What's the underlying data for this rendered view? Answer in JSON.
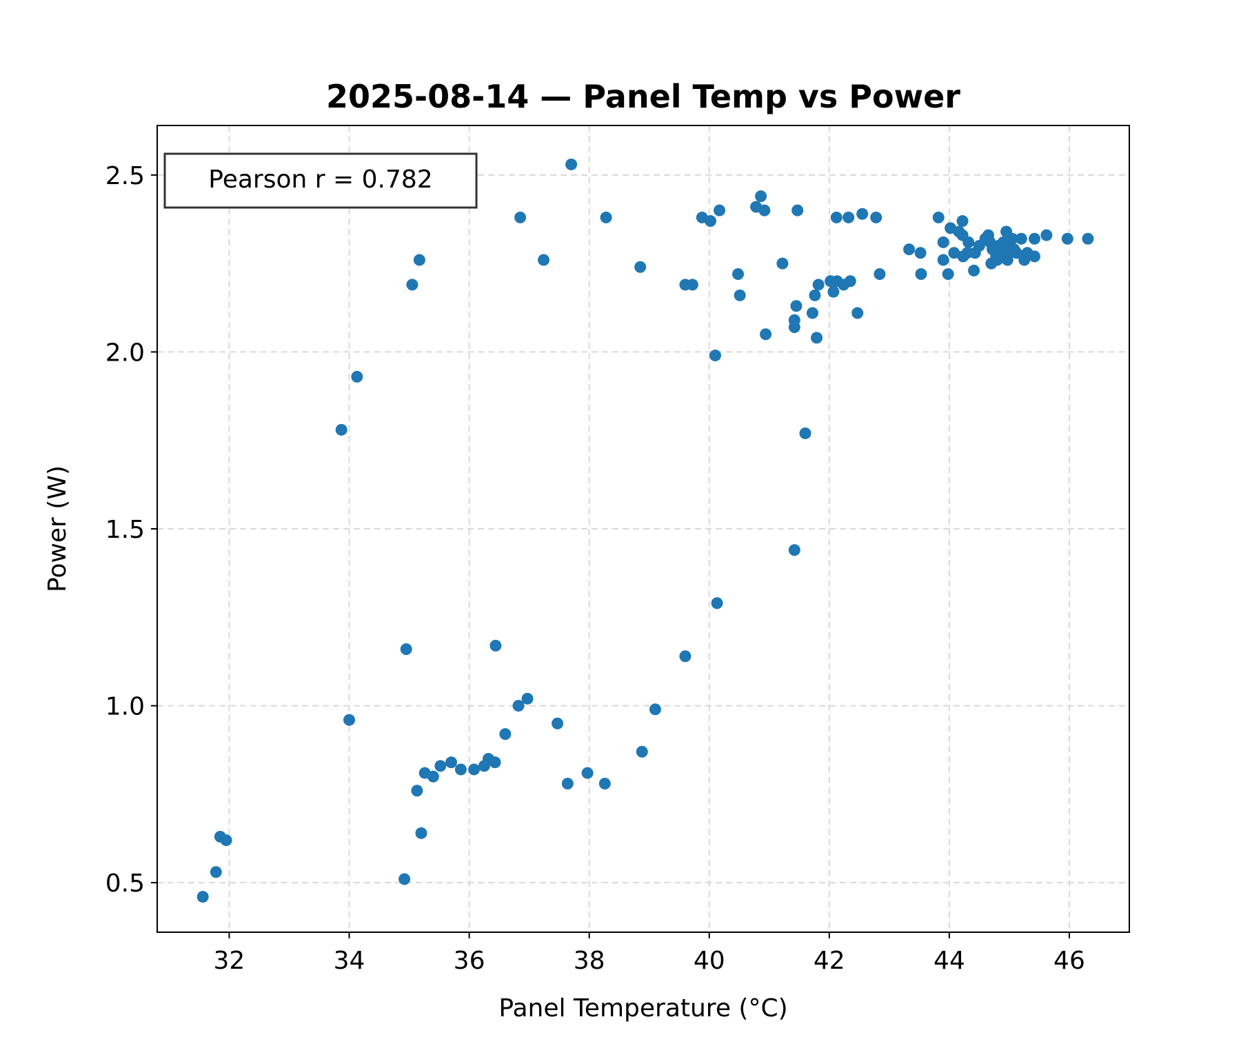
{
  "chart_data": {
    "type": "scatter",
    "title": "2025-08-14 — Panel Temp vs Power",
    "xlabel": "Panel Temperature (°C)",
    "ylabel": "Power (W)",
    "xlim": [
      30.8,
      47.0
    ],
    "ylim": [
      0.36,
      2.64
    ],
    "xticks": [
      32,
      34,
      36,
      38,
      40,
      42,
      44,
      46
    ],
    "yticks": [
      0.5,
      1.0,
      1.5,
      2.0,
      2.5
    ],
    "xtick_labels": [
      "32",
      "34",
      "36",
      "38",
      "40",
      "42",
      "44",
      "46"
    ],
    "ytick_labels": [
      "0.5",
      "1.0",
      "1.5",
      "2.0",
      "2.5"
    ],
    "grid": true,
    "marker_color": "#1f77b4",
    "annotation": "Pearson r = 0.782",
    "annotation_position": "top-left",
    "points": [
      [
        31.56,
        0.46
      ],
      [
        31.78,
        0.53
      ],
      [
        31.85,
        0.63
      ],
      [
        31.95,
        0.62
      ],
      [
        33.87,
        1.78
      ],
      [
        34.0,
        0.96
      ],
      [
        34.13,
        1.93
      ],
      [
        34.92,
        0.51
      ],
      [
        34.95,
        1.16
      ],
      [
        35.05,
        2.19
      ],
      [
        35.13,
        0.76
      ],
      [
        35.17,
        2.26
      ],
      [
        35.2,
        0.64
      ],
      [
        35.26,
        0.81
      ],
      [
        35.4,
        0.8
      ],
      [
        35.52,
        0.83
      ],
      [
        35.7,
        0.84
      ],
      [
        35.86,
        0.82
      ],
      [
        36.08,
        0.82
      ],
      [
        36.25,
        0.83
      ],
      [
        36.32,
        0.85
      ],
      [
        36.43,
        0.84
      ],
      [
        36.44,
        1.17
      ],
      [
        36.6,
        0.92
      ],
      [
        36.82,
        1.0
      ],
      [
        36.85,
        2.38
      ],
      [
        36.97,
        1.02
      ],
      [
        37.24,
        2.26
      ],
      [
        37.47,
        0.95
      ],
      [
        37.64,
        0.78
      ],
      [
        37.7,
        2.53
      ],
      [
        37.97,
        0.81
      ],
      [
        38.26,
        0.78
      ],
      [
        38.28,
        2.38
      ],
      [
        38.85,
        2.24
      ],
      [
        38.88,
        0.87
      ],
      [
        39.1,
        0.99
      ],
      [
        39.6,
        1.14
      ],
      [
        39.6,
        2.19
      ],
      [
        39.72,
        2.19
      ],
      [
        39.88,
        2.38
      ],
      [
        40.02,
        2.37
      ],
      [
        40.1,
        1.99
      ],
      [
        40.13,
        1.29
      ],
      [
        40.17,
        2.4
      ],
      [
        40.48,
        2.22
      ],
      [
        40.51,
        2.16
      ],
      [
        40.78,
        2.41
      ],
      [
        40.86,
        2.44
      ],
      [
        40.92,
        2.4
      ],
      [
        40.94,
        2.05
      ],
      [
        41.22,
        2.25
      ],
      [
        41.42,
        1.44
      ],
      [
        41.42,
        2.09
      ],
      [
        41.42,
        2.07
      ],
      [
        41.45,
        2.13
      ],
      [
        41.47,
        2.4
      ],
      [
        41.6,
        1.77
      ],
      [
        41.72,
        2.11
      ],
      [
        41.76,
        2.16
      ],
      [
        41.79,
        2.04
      ],
      [
        41.82,
        2.19
      ],
      [
        42.02,
        2.2
      ],
      [
        42.07,
        2.17
      ],
      [
        42.12,
        2.38
      ],
      [
        42.13,
        2.2
      ],
      [
        42.24,
        2.19
      ],
      [
        42.32,
        2.38
      ],
      [
        42.35,
        2.2
      ],
      [
        42.47,
        2.11
      ],
      [
        42.55,
        2.39
      ],
      [
        42.78,
        2.38
      ],
      [
        42.84,
        2.22
      ],
      [
        43.33,
        2.29
      ],
      [
        43.52,
        2.28
      ],
      [
        43.53,
        2.22
      ],
      [
        43.82,
        2.38
      ],
      [
        43.9,
        2.31
      ],
      [
        43.9,
        2.26
      ],
      [
        43.98,
        2.22
      ],
      [
        44.02,
        2.35
      ],
      [
        44.08,
        2.28
      ],
      [
        44.16,
        2.34
      ],
      [
        44.22,
        2.37
      ],
      [
        44.22,
        2.33
      ],
      [
        44.23,
        2.27
      ],
      [
        44.3,
        2.28
      ],
      [
        44.32,
        2.31
      ],
      [
        44.41,
        2.23
      ],
      [
        44.43,
        2.28
      ],
      [
        44.5,
        2.3
      ],
      [
        44.6,
        2.32
      ],
      [
        44.65,
        2.33
      ],
      [
        44.68,
        2.31
      ],
      [
        44.7,
        2.25
      ],
      [
        44.72,
        2.29
      ],
      [
        44.78,
        2.27
      ],
      [
        44.8,
        2.26
      ],
      [
        44.82,
        2.3
      ],
      [
        44.85,
        2.28
      ],
      [
        44.88,
        2.29
      ],
      [
        44.9,
        2.31
      ],
      [
        44.92,
        2.27
      ],
      [
        44.95,
        2.34
      ],
      [
        44.97,
        2.26
      ],
      [
        44.98,
        2.3
      ],
      [
        45.0,
        2.28
      ],
      [
        45.05,
        2.32
      ],
      [
        45.08,
        2.29
      ],
      [
        45.12,
        2.28
      ],
      [
        45.2,
        2.32
      ],
      [
        45.25,
        2.26
      ],
      [
        45.3,
        2.28
      ],
      [
        45.42,
        2.32
      ],
      [
        45.42,
        2.27
      ],
      [
        45.62,
        2.33
      ],
      [
        45.97,
        2.32
      ],
      [
        46.31,
        2.32
      ]
    ]
  }
}
